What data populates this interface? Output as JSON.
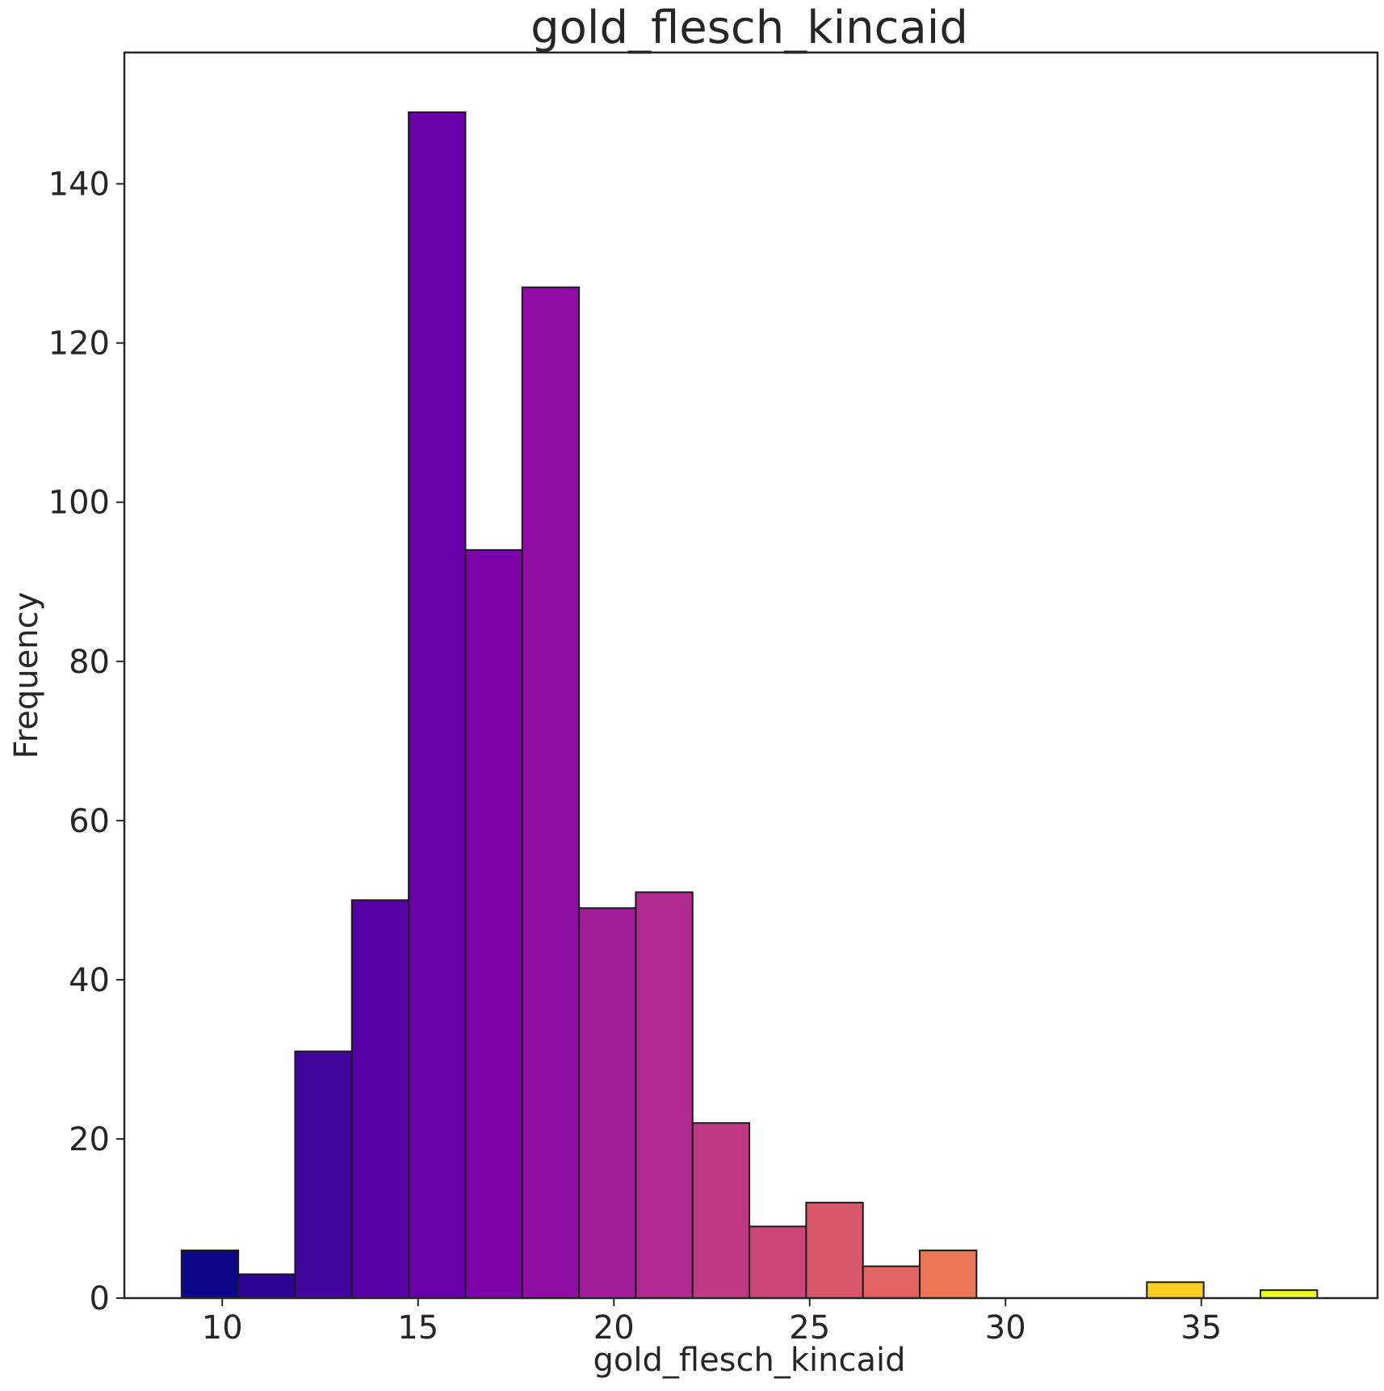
{
  "chart_data": {
    "type": "bar",
    "title": "gold_flesch_kincaid",
    "xlabel": "gold_flesch_kincaid",
    "ylabel": "Frequency",
    "xlim": [
      7.5,
      39.5
    ],
    "ylim": [
      0,
      156.5
    ],
    "xticks": [
      10,
      15,
      20,
      25,
      30,
      35
    ],
    "yticks": [
      0,
      20,
      40,
      60,
      80,
      100,
      120,
      140
    ],
    "grid": false,
    "bins": [
      {
        "x0": 8.96,
        "x1": 10.41,
        "value": 6,
        "color": "#0d0887"
      },
      {
        "x0": 10.41,
        "x1": 11.86,
        "value": 3,
        "color": "#2a0593"
      },
      {
        "x0": 11.86,
        "x1": 13.31,
        "value": 31,
        "color": "#41049d"
      },
      {
        "x0": 13.31,
        "x1": 14.76,
        "value": 50,
        "color": "#5601a4"
      },
      {
        "x0": 14.76,
        "x1": 16.21,
        "value": 149,
        "color": "#6a00a8"
      },
      {
        "x0": 16.21,
        "x1": 17.66,
        "value": 94,
        "color": "#7e03a8"
      },
      {
        "x0": 17.66,
        "x1": 19.11,
        "value": 127,
        "color": "#8f0da4"
      },
      {
        "x0": 19.11,
        "x1": 20.56,
        "value": 49,
        "color": "#a11b9b"
      },
      {
        "x0": 20.56,
        "x1": 22.01,
        "value": 51,
        "color": "#b12a90"
      },
      {
        "x0": 22.01,
        "x1": 23.46,
        "value": 22,
        "color": "#bf3984"
      },
      {
        "x0": 23.46,
        "x1": 24.91,
        "value": 9,
        "color": "#cc4778"
      },
      {
        "x0": 24.91,
        "x1": 26.36,
        "value": 12,
        "color": "#d8576b"
      },
      {
        "x0": 26.36,
        "x1": 27.81,
        "value": 4,
        "color": "#e16462"
      },
      {
        "x0": 27.81,
        "x1": 29.26,
        "value": 6,
        "color": "#eb7655"
      },
      {
        "x0": 29.26,
        "x1": 30.71,
        "value": 0,
        "color": "#f2844b"
      },
      {
        "x0": 30.71,
        "x1": 32.16,
        "value": 0,
        "color": "#f89540"
      },
      {
        "x0": 32.16,
        "x1": 33.61,
        "value": 0,
        "color": "#fca636"
      },
      {
        "x0": 33.61,
        "x1": 35.06,
        "value": 2,
        "color": "#fcce25"
      },
      {
        "x0": 35.06,
        "x1": 36.51,
        "value": 0,
        "color": "#f7e225"
      },
      {
        "x0": 36.51,
        "x1": 37.96,
        "value": 1,
        "color": "#f0f921"
      }
    ]
  }
}
